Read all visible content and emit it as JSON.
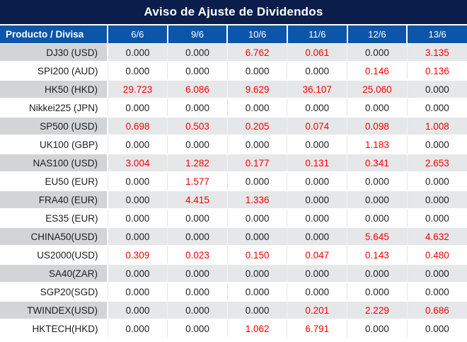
{
  "title": "Aviso de Ajuste de Dividendos",
  "colors": {
    "title_bar_bg": "#0B1E4B",
    "header_bg": "#0D55A8",
    "header_text": "#FFFFFF",
    "row_gray_product_bg": "#D3D4D6",
    "row_gray_value_bg": "#E6E7E9",
    "row_white_bg": "#FFFFFF",
    "value_black": "#202020",
    "value_red": "#F70000",
    "table_bottom_border": "#C9C9C9"
  },
  "chart_data": {
    "type": "table",
    "title": "Aviso de Ajuste de Dividendos",
    "columns": [
      "Producto / Divisa",
      "6/6",
      "9/6",
      "10/6",
      "11/6",
      "12/6",
      "13/6"
    ],
    "rows": [
      {
        "product": "DJ30 (USD)",
        "values": [
          "0.000",
          "0.000",
          "6.762",
          "0.061",
          "0.000",
          "3.135"
        ],
        "red_flags": [
          false,
          false,
          true,
          true,
          false,
          true
        ]
      },
      {
        "product": "SPI200 (AUD)",
        "values": [
          "0.000",
          "0.000",
          "0.000",
          "0.000",
          "0.146",
          "0.136"
        ],
        "red_flags": [
          false,
          false,
          false,
          false,
          true,
          true
        ]
      },
      {
        "product": "HK50 (HKD)",
        "values": [
          "29.723",
          "6.086",
          "9.629",
          "36.107",
          "25.060",
          "0.000"
        ],
        "red_flags": [
          true,
          true,
          true,
          true,
          true,
          false
        ]
      },
      {
        "product": "Nikkei225 (JPN)",
        "values": [
          "0.000",
          "0.000",
          "0.000",
          "0.000",
          "0.000",
          "0.000"
        ],
        "red_flags": [
          false,
          false,
          false,
          false,
          false,
          false
        ]
      },
      {
        "product": "SP500 (USD)",
        "values": [
          "0.698",
          "0.503",
          "0.205",
          "0.074",
          "0.098",
          "1.008"
        ],
        "red_flags": [
          true,
          true,
          true,
          true,
          true,
          true
        ]
      },
      {
        "product": "UK100 (GBP)",
        "values": [
          "0.000",
          "0.000",
          "0.000",
          "0.000",
          "1.183",
          "0.000"
        ],
        "red_flags": [
          false,
          false,
          false,
          false,
          true,
          false
        ]
      },
      {
        "product": "NAS100 (USD)",
        "values": [
          "3.004",
          "1.282",
          "0.177",
          "0.131",
          "0.341",
          "2.653"
        ],
        "red_flags": [
          true,
          true,
          true,
          true,
          true,
          true
        ]
      },
      {
        "product": "EU50 (EUR)",
        "values": [
          "0.000",
          "1.577",
          "0.000",
          "0.000",
          "0.000",
          "0.000"
        ],
        "red_flags": [
          false,
          true,
          false,
          false,
          false,
          false
        ]
      },
      {
        "product": "FRA40 (EUR)",
        "values": [
          "0.000",
          "4.415",
          "1.336",
          "0.000",
          "0.000",
          "0.000"
        ],
        "red_flags": [
          false,
          true,
          true,
          false,
          false,
          false
        ]
      },
      {
        "product": "ES35 (EUR)",
        "values": [
          "0.000",
          "0.000",
          "0.000",
          "0.000",
          "0.000",
          "0.000"
        ],
        "red_flags": [
          false,
          false,
          false,
          false,
          false,
          false
        ]
      },
      {
        "product": "CHINA50(USD)",
        "values": [
          "0.000",
          "0.000",
          "0.000",
          "0.000",
          "5.645",
          "4.632"
        ],
        "red_flags": [
          false,
          false,
          false,
          false,
          true,
          true
        ]
      },
      {
        "product": "US2000(USD)",
        "values": [
          "0.309",
          "0.023",
          "0.150",
          "0.047",
          "0.143",
          "0.480"
        ],
        "red_flags": [
          true,
          true,
          true,
          true,
          true,
          true
        ]
      },
      {
        "product": "SA40(ZAR)",
        "values": [
          "0.000",
          "0.000",
          "0.000",
          "0.000",
          "0.000",
          "0.000"
        ],
        "red_flags": [
          false,
          false,
          false,
          false,
          false,
          false
        ]
      },
      {
        "product": "SGP20(SGD)",
        "values": [
          "0.000",
          "0.000",
          "0.000",
          "0.000",
          "0.000",
          "0.000"
        ],
        "red_flags": [
          false,
          false,
          false,
          false,
          false,
          false
        ]
      },
      {
        "product": "TWINDEX(USD)",
        "values": [
          "0.000",
          "0.000",
          "0.000",
          "0.201",
          "2.229",
          "0.686"
        ],
        "red_flags": [
          false,
          false,
          false,
          true,
          true,
          true
        ]
      },
      {
        "product": "HKTECH(HKD)",
        "values": [
          "0.000",
          "0.000",
          "1.062",
          "6.791",
          "0.000",
          "0.000"
        ],
        "red_flags": [
          false,
          false,
          true,
          true,
          false,
          false
        ]
      }
    ]
  }
}
